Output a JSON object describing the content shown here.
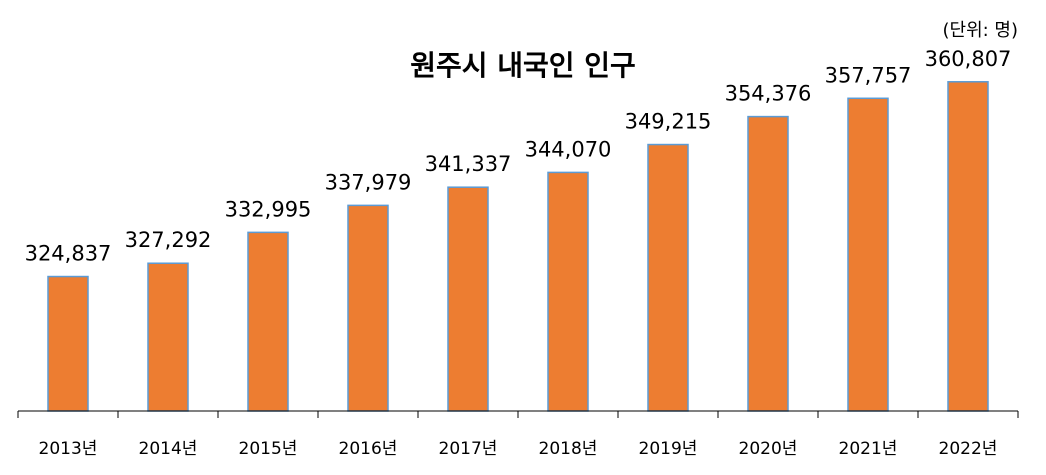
{
  "unit_label": "(단위: 명)",
  "chart_data": {
    "type": "bar",
    "title": "원주시 내국인 인구",
    "xlabel": "",
    "ylabel": "",
    "categories": [
      "2013년",
      "2014년",
      "2015년",
      "2016년",
      "2017년",
      "2018년",
      "2019년",
      "2020년",
      "2021년",
      "2022년"
    ],
    "values": [
      324837,
      327292,
      332995,
      337979,
      341337,
      344070,
      349215,
      354376,
      357757,
      360807
    ],
    "value_labels": [
      "324,837",
      "327,292",
      "332,995",
      "337,979",
      "341,337",
      "344,070",
      "349,215",
      "354,376",
      "357,757",
      "360,807"
    ],
    "ylim": [
      300000,
      370000
    ],
    "grid": false,
    "legend": "none",
    "colors": {
      "bar_fill": "#ED7D31",
      "bar_outline": "#5B9BD5"
    }
  }
}
